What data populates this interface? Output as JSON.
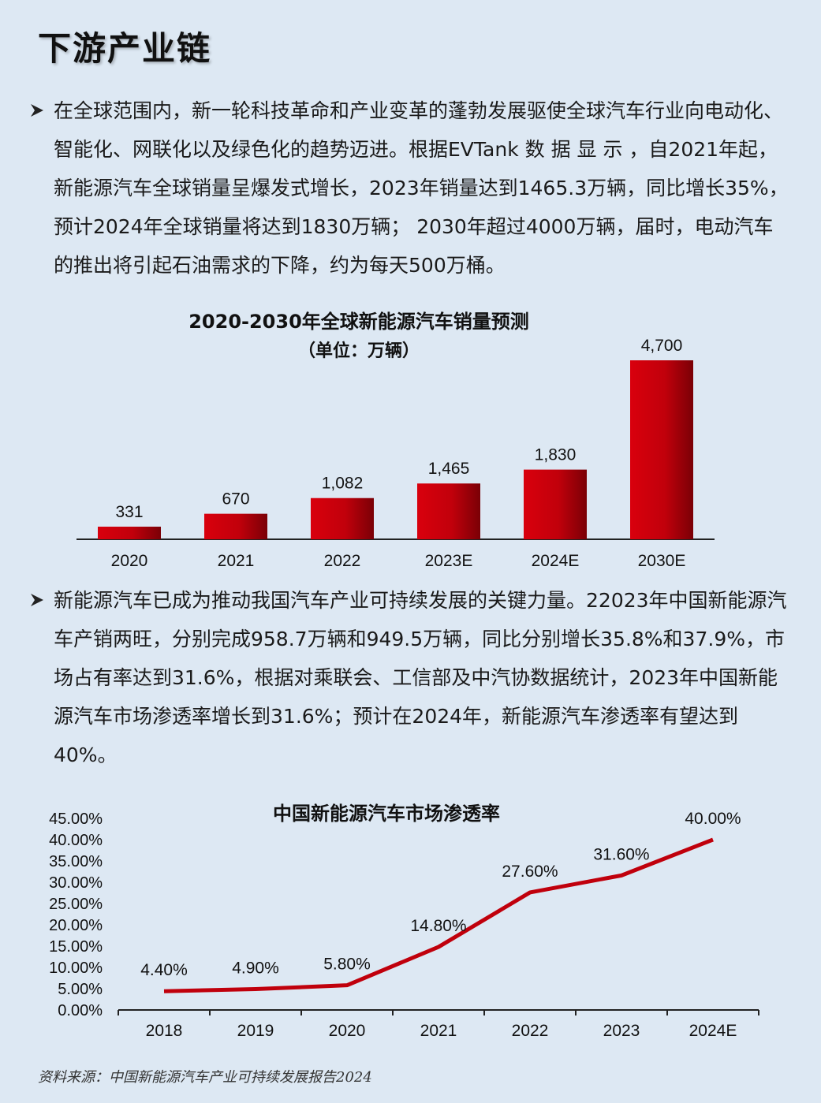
{
  "page_title": "下游产业链",
  "paragraphs": [
    "在全球范围内，新一轮科技革命和产业变革的蓬勃发展驱使全球汽车行业向电动化、智能化、网联化以及绿色化的趋势迈进。根据EVTank 数 据 显 示 ，自2021年起，新能源汽车全球销量呈爆发式增长，2023年销量达到1465.3万辆，同比增长35%，预计2024年全球销量将达到1830万辆； 2030年超过4000万辆，届时，电动汽车的推出将引起石油需求的下降，约为每天500万桶。",
    "新能源汽车已成为推动我国汽车产业可持续发展的关键力量。22023年中国新能源汽车产销两旺，分别完成958.7万辆和949.5万辆，同比分别增长35.8%和37.9%，市场占有率达到31.6%，根据对乘联会、工信部及中汽协数据统计，2023年中国新能源汽车市场渗透率增长到31.6%；预计在2024年，新能源汽车渗透率有望达到40%。"
  ],
  "chart_data": [
    {
      "type": "bar",
      "title": "2020-2030年全球新能源汽车销量预测",
      "subtitle": "（单位：万辆）",
      "categories": [
        "2020",
        "2021",
        "2022",
        "2023E",
        "2024E",
        "2030E"
      ],
      "values": [
        331,
        670,
        1082,
        1465,
        1830,
        4700
      ],
      "value_labels": [
        "331",
        "670",
        "1,082",
        "1,465",
        "1,830",
        "4,700"
      ],
      "ylim": [
        0,
        4700
      ],
      "grid": false,
      "bar_color": "#c0000c"
    },
    {
      "type": "line",
      "title": "中国新能源汽车市场渗透率",
      "categories": [
        "2018",
        "2019",
        "2020",
        "2021",
        "2022",
        "2023",
        "2024E"
      ],
      "values": [
        4.4,
        4.9,
        5.8,
        14.8,
        27.6,
        31.6,
        40.0
      ],
      "value_labels": [
        "4.40%",
        "4.90%",
        "5.80%",
        "14.80%",
        "27.60%",
        "31.60%",
        "40.00%"
      ],
      "y_ticks": [
        "0.00%",
        "5.00%",
        "10.00%",
        "15.00%",
        "20.00%",
        "25.00%",
        "30.00%",
        "35.00%",
        "40.00%",
        "45.00%"
      ],
      "ylim": [
        0,
        45
      ],
      "grid": false,
      "line_color": "#c0000c"
    }
  ],
  "source": "资料来源：中国新能源汽车产业可持续发展报告2024"
}
